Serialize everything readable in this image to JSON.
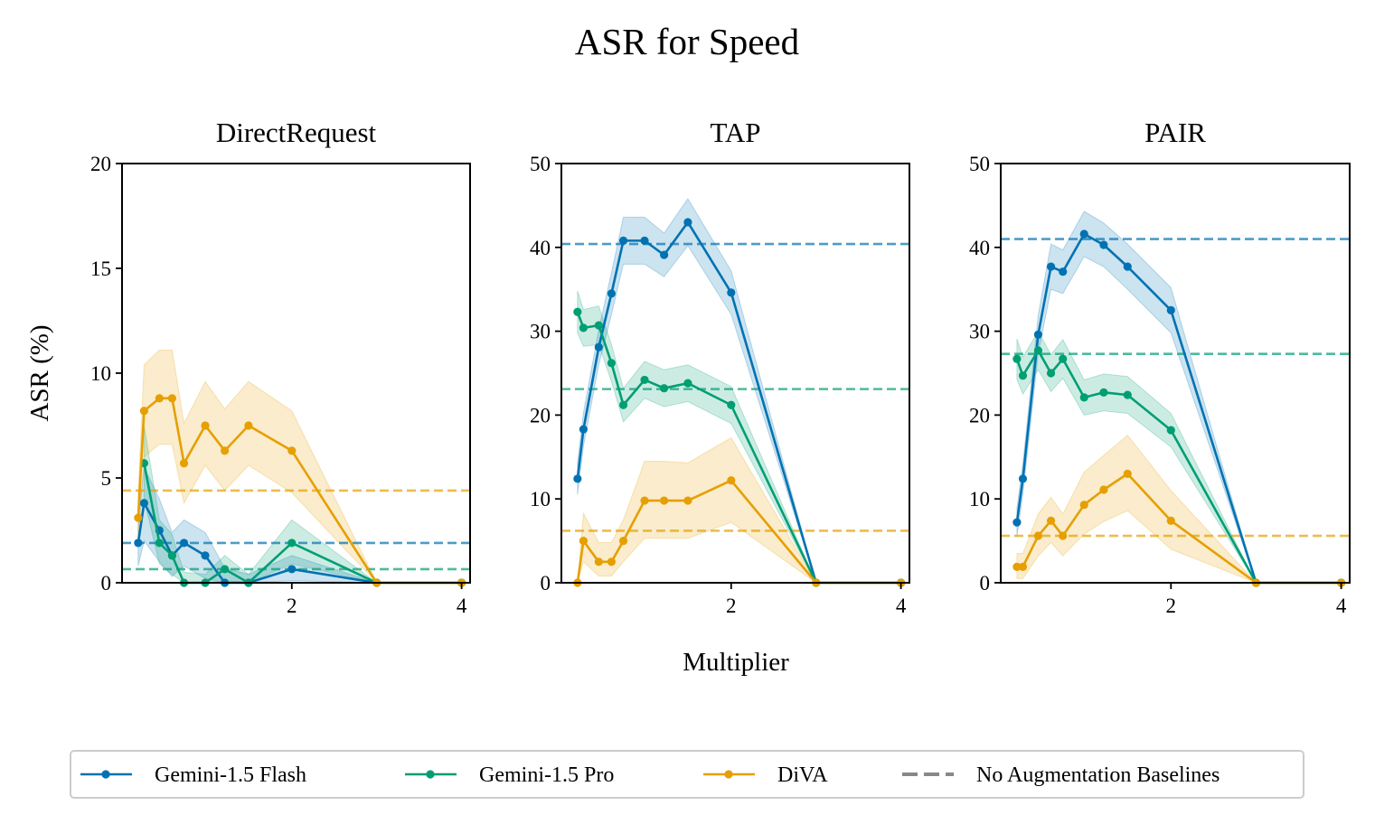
{
  "figure": {
    "title": "ASR for Speed",
    "xlabel": "Multiplier",
    "ylabel": "ASR (%)"
  },
  "legend": {
    "placement": "bottom-center",
    "entries": [
      {
        "label": "Gemini-1.5 Flash",
        "style": "line-marker",
        "color": "#0072b2"
      },
      {
        "label": "Gemini-1.5 Pro",
        "style": "line-marker",
        "color": "#009e73"
      },
      {
        "label": "DiVA",
        "style": "line-marker",
        "color": "#e69f00"
      },
      {
        "label": "No Augmentation Baselines",
        "style": "dashed",
        "color": "#888888"
      }
    ]
  },
  "chart_data": [
    {
      "type": "line",
      "title": "DirectRequest",
      "xlim": [
        0,
        4.1
      ],
      "ylim": [
        0,
        20
      ],
      "xticks": [
        2,
        4
      ],
      "yticks": [
        0,
        5,
        10,
        15,
        20
      ],
      "baselines": [
        {
          "name": "Gemini-1.5 Flash",
          "value": 1.9,
          "color": "#0072b2"
        },
        {
          "name": "Gemini-1.5 Pro",
          "value": 0.65,
          "color": "#009e73"
        },
        {
          "name": "DiVA",
          "value": 4.4,
          "color": "#e69f00"
        }
      ],
      "series": [
        {
          "name": "Gemini-1.5 Flash",
          "color": "#0072b2",
          "x": [
            0.19,
            0.26,
            0.44,
            0.59,
            0.73,
            0.98,
            1.21,
            1.49,
            2.0,
            3.0,
            4.0
          ],
          "values": [
            1.9,
            3.8,
            2.5,
            1.3,
            1.9,
            1.3,
            0.0,
            0.0,
            0.65,
            0.0,
            0.0
          ],
          "band_low": [
            0.8,
            2.0,
            1.0,
            0.3,
            0.8,
            0.2,
            0.0,
            0.0,
            0.1,
            0.0,
            0.0
          ],
          "band_high": [
            3.0,
            5.5,
            4.0,
            2.4,
            3.0,
            2.4,
            0.7,
            0.4,
            1.3,
            0.0,
            0.0
          ]
        },
        {
          "name": "Gemini-1.5 Pro",
          "color": "#009e73",
          "x": [
            0.26,
            0.44,
            0.59,
            0.73,
            0.98,
            1.21,
            1.49,
            2.0,
            3.0,
            4.0
          ],
          "values": [
            5.7,
            1.9,
            1.3,
            0.0,
            0.0,
            0.65,
            0.0,
            1.9,
            0.0,
            0.0
          ],
          "band_low": [
            4.0,
            0.9,
            0.4,
            0.0,
            0.0,
            0.1,
            0.0,
            0.9,
            0.0,
            0.0
          ],
          "band_high": [
            7.5,
            3.0,
            2.3,
            0.5,
            0.4,
            1.3,
            0.4,
            3.0,
            0.0,
            0.0
          ]
        },
        {
          "name": "DiVA",
          "color": "#e69f00",
          "x": [
            0.19,
            0.26,
            0.44,
            0.59,
            0.73,
            0.98,
            1.21,
            1.49,
            2.0,
            3.0,
            4.0
          ],
          "values": [
            3.1,
            8.2,
            8.8,
            8.8,
            5.7,
            7.5,
            6.3,
            7.5,
            6.3,
            0.0,
            0.0
          ],
          "band_low": [
            2.0,
            6.0,
            6.6,
            6.6,
            3.8,
            5.6,
            4.4,
            5.6,
            4.3,
            0.0,
            0.0
          ],
          "band_high": [
            4.3,
            10.4,
            11.1,
            11.1,
            7.6,
            9.6,
            8.3,
            9.6,
            8.2,
            0.0,
            0.0
          ]
        }
      ]
    },
    {
      "type": "line",
      "title": "TAP",
      "xlim": [
        0,
        4.1
      ],
      "ylim": [
        0,
        50
      ],
      "xticks": [
        2,
        4
      ],
      "yticks": [
        0,
        10,
        20,
        30,
        40,
        50
      ],
      "baselines": [
        {
          "name": "Gemini-1.5 Flash",
          "value": 40.4,
          "color": "#0072b2"
        },
        {
          "name": "Gemini-1.5 Pro",
          "value": 23.1,
          "color": "#009e73"
        },
        {
          "name": "DiVA",
          "value": 6.2,
          "color": "#e69f00"
        }
      ],
      "series": [
        {
          "name": "Gemini-1.5 Flash",
          "color": "#0072b2",
          "x": [
            0.19,
            0.26,
            0.44,
            0.59,
            0.73,
            0.98,
            1.21,
            1.49,
            2.0,
            3.0,
            4.0
          ],
          "values": [
            12.4,
            18.3,
            28.1,
            34.5,
            40.8,
            40.8,
            39.1,
            43.0,
            34.6,
            0.0,
            0.0
          ],
          "band_low": [
            10.5,
            16.3,
            26.0,
            32.0,
            38.0,
            38.0,
            36.5,
            40.2,
            32.0,
            0.0,
            0.0
          ],
          "band_high": [
            14.3,
            20.3,
            30.2,
            37.0,
            43.6,
            43.6,
            41.7,
            45.8,
            37.2,
            0.0,
            0.0
          ]
        },
        {
          "name": "Gemini-1.5 Pro",
          "color": "#009e73",
          "x": [
            0.19,
            0.26,
            0.44,
            0.59,
            0.73,
            0.98,
            1.21,
            1.49,
            2.0,
            3.0,
            4.0
          ],
          "values": [
            32.3,
            30.4,
            30.7,
            26.2,
            21.2,
            24.2,
            23.2,
            23.8,
            21.2,
            0.0,
            0.0
          ],
          "band_low": [
            29.8,
            28.2,
            28.4,
            24.0,
            19.2,
            22.0,
            21.0,
            21.6,
            19.0,
            0.0,
            0.0
          ],
          "band_high": [
            34.8,
            32.6,
            33.0,
            28.4,
            23.2,
            26.4,
            25.4,
            26.0,
            23.4,
            0.0,
            0.0
          ]
        },
        {
          "name": "DiVA",
          "color": "#e69f00",
          "x": [
            0.19,
            0.26,
            0.44,
            0.59,
            0.73,
            0.98,
            1.21,
            1.49,
            2.0,
            3.0,
            4.0
          ],
          "values": [
            0.0,
            5.0,
            2.5,
            2.5,
            5.0,
            9.8,
            9.8,
            9.8,
            12.2,
            0.0,
            0.0
          ],
          "band_low": [
            0.0,
            2.5,
            0.8,
            0.8,
            2.5,
            5.3,
            5.3,
            5.3,
            7.2,
            0.0,
            0.0
          ],
          "band_high": [
            0.0,
            8.3,
            4.8,
            4.8,
            7.5,
            14.5,
            14.5,
            14.3,
            17.3,
            0.0,
            0.0
          ]
        }
      ]
    },
    {
      "type": "line",
      "title": "PAIR",
      "xlim": [
        0,
        4.1
      ],
      "ylim": [
        0,
        50
      ],
      "xticks": [
        2,
        4
      ],
      "yticks": [
        0,
        10,
        20,
        30,
        40,
        50
      ],
      "baselines": [
        {
          "name": "Gemini-1.5 Flash",
          "value": 41.0,
          "color": "#0072b2"
        },
        {
          "name": "Gemini-1.5 Pro",
          "value": 27.3,
          "color": "#009e73"
        },
        {
          "name": "DiVA",
          "value": 5.6,
          "color": "#e69f00"
        }
      ],
      "series": [
        {
          "name": "Gemini-1.5 Flash",
          "color": "#0072b2",
          "x": [
            0.19,
            0.26,
            0.44,
            0.59,
            0.73,
            0.98,
            1.21,
            1.49,
            2.0,
            3.0,
            4.0
          ],
          "values": [
            7.2,
            12.4,
            29.6,
            37.7,
            37.1,
            41.6,
            40.3,
            37.7,
            32.5,
            0.0,
            0.0
          ],
          "band_low": [
            5.5,
            10.6,
            27.3,
            35.0,
            34.5,
            38.9,
            37.7,
            35.0,
            29.8,
            0.0,
            0.0
          ],
          "band_high": [
            8.9,
            14.2,
            31.9,
            40.4,
            39.7,
            44.3,
            42.9,
            40.4,
            35.2,
            0.0,
            0.0
          ]
        },
        {
          "name": "Gemini-1.5 Pro",
          "color": "#009e73",
          "x": [
            0.19,
            0.26,
            0.44,
            0.59,
            0.73,
            0.98,
            1.21,
            1.49,
            2.0,
            3.0,
            4.0
          ],
          "values": [
            26.7,
            24.7,
            27.7,
            25.0,
            26.7,
            22.1,
            22.7,
            22.4,
            18.2,
            0.0,
            0.0
          ],
          "band_low": [
            24.3,
            22.5,
            25.4,
            22.8,
            24.4,
            20.0,
            20.5,
            20.2,
            16.2,
            0.0,
            0.0
          ],
          "band_high": [
            29.1,
            26.9,
            30.0,
            27.2,
            29.0,
            24.2,
            24.9,
            24.6,
            20.2,
            0.0,
            0.0
          ]
        },
        {
          "name": "DiVA",
          "color": "#e69f00",
          "x": [
            0.19,
            0.26,
            0.44,
            0.59,
            0.73,
            0.98,
            1.21,
            1.49,
            2.0,
            3.0,
            4.0
          ],
          "values": [
            1.9,
            1.9,
            5.6,
            7.4,
            5.6,
            9.3,
            11.1,
            13.0,
            7.4,
            0.0,
            0.0
          ],
          "band_low": [
            0.5,
            0.5,
            3.2,
            4.8,
            3.2,
            5.8,
            7.3,
            8.6,
            4.0,
            0.0,
            0.0
          ],
          "band_high": [
            3.5,
            3.5,
            8.2,
            10.2,
            8.2,
            13.2,
            15.2,
            17.6,
            11.0,
            0.0,
            0.0
          ]
        }
      ]
    }
  ]
}
